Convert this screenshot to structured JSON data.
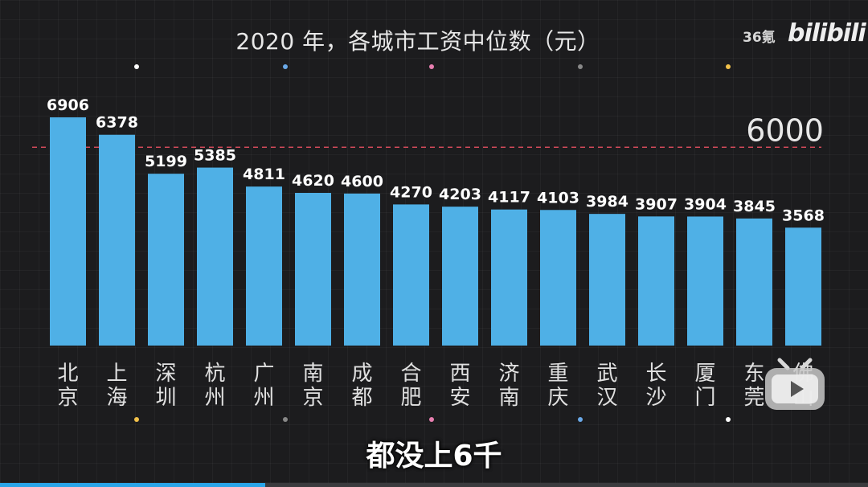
{
  "title": "2020 年，各城市工资中位数（元）",
  "watermark": {
    "source": "36氪",
    "site": "bilibili"
  },
  "caption": "都没上6千",
  "chart_data": {
    "type": "bar",
    "title": "2020 年，各城市工资中位数（元）",
    "categories": [
      "北京",
      "上海",
      "深圳",
      "杭州",
      "广州",
      "南京",
      "成都",
      "合肥",
      "西安",
      "济南",
      "重庆",
      "武汉",
      "长沙",
      "厦门",
      "东莞",
      "佛山"
    ],
    "values": [
      6906,
      6378,
      5199,
      5385,
      4811,
      4620,
      4600,
      4270,
      4203,
      4117,
      4103,
      3984,
      3907,
      3904,
      3845,
      3568
    ],
    "reference_line": {
      "value": 6000,
      "label": "6000",
      "color": "#d24a5a"
    },
    "ylim": [
      0,
      7000
    ],
    "grid": false,
    "bar_color": "#4fb0e6",
    "label_color": "#ffffff"
  },
  "decor_dots": {
    "top_colors": [
      "#ffffff",
      "#6aa9e8",
      "#e77fb0",
      "#888888",
      "#f2c14a"
    ],
    "bottom_colors": [
      "#f2c14a",
      "#888888",
      "#e77fb0",
      "#6aa9e8",
      "#ffffff"
    ]
  },
  "icons": {
    "play_overlay": "bilibili-tv-play-icon"
  }
}
